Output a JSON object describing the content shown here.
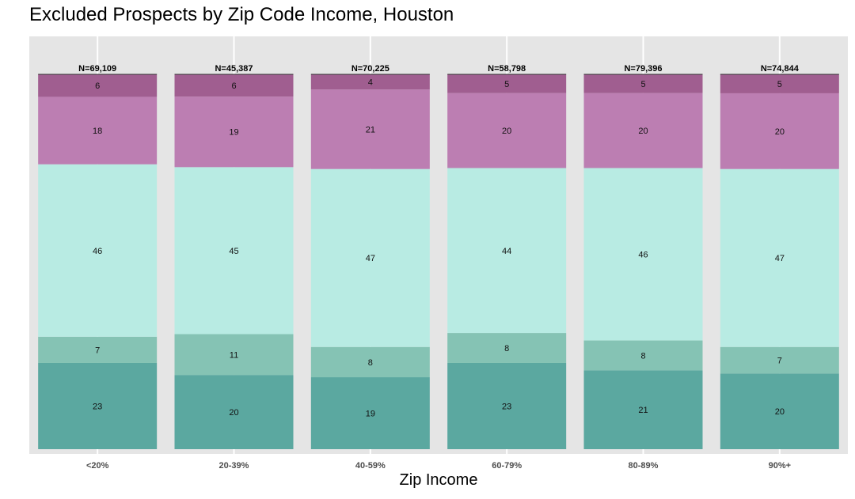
{
  "chart_data": {
    "type": "bar",
    "stacked": true,
    "title": "Excluded Prospects by Zip Code Income, Houston",
    "xlabel": "Zip Income",
    "ylabel": "",
    "ylim": [
      0,
      100
    ],
    "grid": true,
    "legend": "none",
    "categories": [
      "<20%",
      "20-39%",
      "40-59%",
      "60-79%",
      "80-89%",
      "90%+"
    ],
    "totals": [
      "N=69,109",
      "N=45,387",
      "N=70,225",
      "N=58,798",
      "N=79,396",
      "N=74,844"
    ],
    "series": [
      {
        "values": [
          23,
          20,
          19,
          23,
          21,
          20
        ],
        "color": "#5ba8a0"
      },
      {
        "values": [
          7,
          11,
          8,
          8,
          8,
          7
        ],
        "color": "#85c3b4"
      },
      {
        "values": [
          46,
          45,
          47,
          44,
          46,
          47
        ],
        "color": "#b8ebe3"
      },
      {
        "values": [
          18,
          19,
          21,
          20,
          20,
          20
        ],
        "color": "#bc7eb2"
      },
      {
        "values": [
          6,
          6,
          4,
          5,
          5,
          5
        ],
        "color": "#a05e90"
      }
    ],
    "panel_background": "#e5e5e5",
    "gridline_color": "#ffffff"
  }
}
